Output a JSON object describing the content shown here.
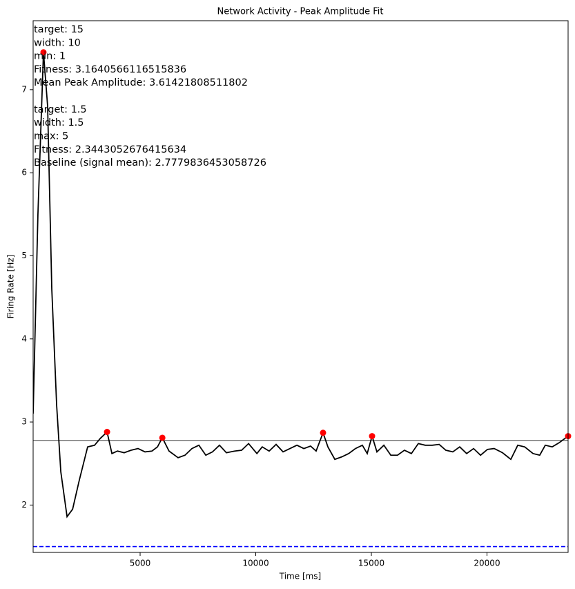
{
  "chart_data": {
    "type": "line",
    "title": "Network Activity - Peak Amplitude Fit",
    "x_label": "Time [ms]",
    "y_label": "Firing Rate [Hz]",
    "xlim": [
      373,
      23507
    ],
    "ylim": [
      1.43,
      7.83
    ],
    "xticks": [
      5000,
      10000,
      15000,
      20000
    ],
    "yticks": [
      2,
      3,
      4,
      5,
      6,
      7
    ],
    "series": [
      {
        "color": "#000000",
        "x": [
          373,
          580,
          820,
          1000,
          1180,
          1390,
          1570,
          1840,
          2080,
          2370,
          2730,
          3030,
          3270,
          3570,
          3780,
          4020,
          4310,
          4610,
          4910,
          5210,
          5510,
          5750,
          5960,
          6250,
          6640,
          6940,
          7240,
          7540,
          7840,
          8130,
          8430,
          8730,
          9090,
          9390,
          9690,
          10050,
          10280,
          10580,
          10880,
          11180,
          11480,
          11780,
          12080,
          12370,
          12610,
          12910,
          13120,
          13420,
          13720,
          14020,
          14310,
          14610,
          14820,
          15030,
          15240,
          15540,
          15840,
          16130,
          16430,
          16730,
          17030,
          17330,
          17630,
          17930,
          18220,
          18520,
          18820,
          19120,
          19420,
          19720,
          20020,
          20310,
          20670,
          21030,
          21330,
          21630,
          21990,
          22280,
          22520,
          22820,
          23120,
          23507
        ],
        "values": [
          3.1,
          5.5,
          7.45,
          6.8,
          4.6,
          3.2,
          2.4,
          1.86,
          1.95,
          2.3,
          2.7,
          2.72,
          2.8,
          2.88,
          2.62,
          2.65,
          2.63,
          2.66,
          2.68,
          2.64,
          2.65,
          2.7,
          2.81,
          2.65,
          2.57,
          2.6,
          2.68,
          2.72,
          2.6,
          2.64,
          2.72,
          2.63,
          2.65,
          2.66,
          2.74,
          2.62,
          2.7,
          2.65,
          2.73,
          2.64,
          2.68,
          2.72,
          2.68,
          2.71,
          2.65,
          2.87,
          2.7,
          2.55,
          2.58,
          2.62,
          2.68,
          2.72,
          2.62,
          2.83,
          2.64,
          2.72,
          2.6,
          2.6,
          2.66,
          2.62,
          2.74,
          2.72,
          2.72,
          2.73,
          2.66,
          2.64,
          2.7,
          2.62,
          2.68,
          2.6,
          2.67,
          2.68,
          2.63,
          2.55,
          2.72,
          2.7,
          2.62,
          2.6,
          2.72,
          2.7,
          2.75,
          2.83
        ]
      },
      {
        "type": "scatter",
        "color": "#ff0000",
        "x": [
          820,
          3570,
          5960,
          12910,
          15030,
          23507
        ],
        "values": [
          7.45,
          2.88,
          2.81,
          2.87,
          2.83,
          2.83
        ]
      }
    ],
    "hlines": [
      {
        "value": 2.7779836453058726,
        "color": "#808080",
        "style": "solid"
      },
      {
        "value": 1.5,
        "color": "#0000ff",
        "style": "dashed"
      }
    ],
    "annotations": [
      {
        "lines": [
          "target: 15",
          "width: 10",
          "min: 1",
          "Fitness: 3.1640566116515836",
          "Mean Peak Amplitude: 3.61421808511802"
        ]
      },
      {
        "lines": [
          "target: 1.5",
          "width: 1.5",
          "max: 5",
          "Fitness: 2.3443052676415634",
          "Baseline (signal mean): 2.7779836453058726"
        ]
      }
    ]
  }
}
